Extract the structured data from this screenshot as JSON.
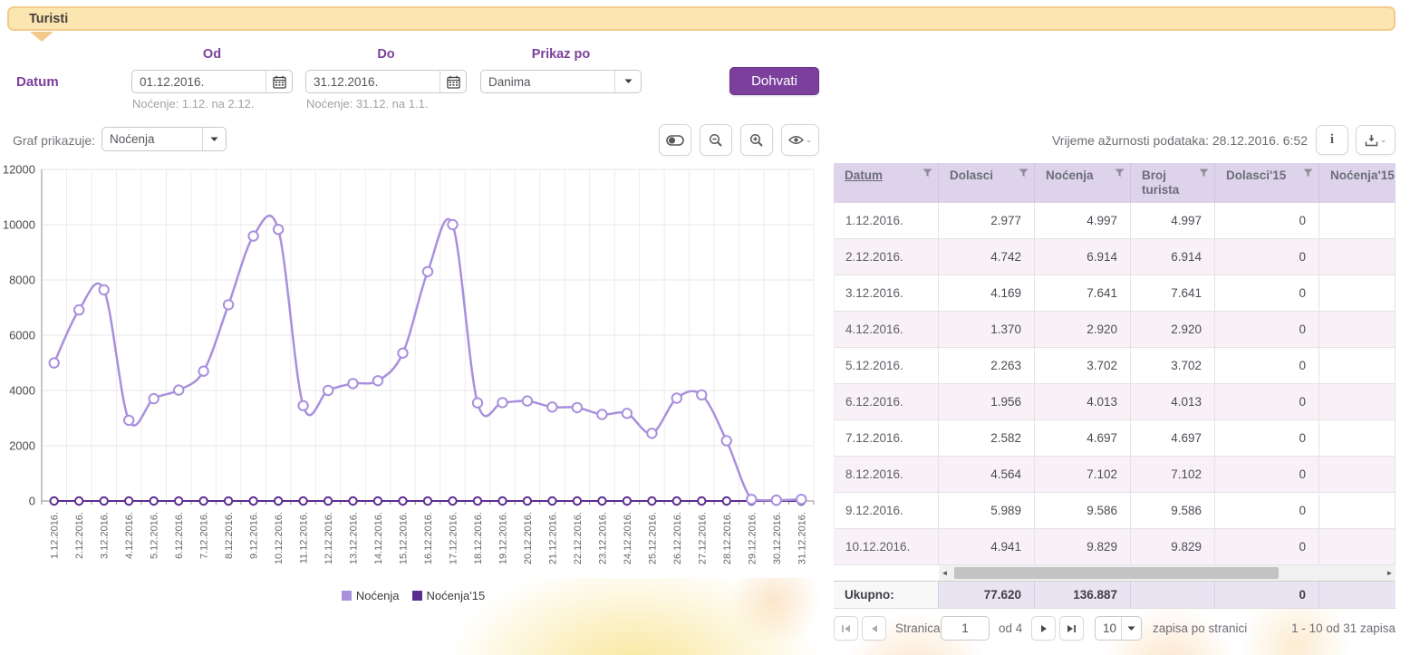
{
  "colors": {
    "accent": "#7c3f9c",
    "tab_bg": "#fbe6b1",
    "tab_border": "#f2cb8c",
    "table_header_bg": "#ddd4eb",
    "row_alt_bg": "#f8f1f8",
    "series_light": "#a990dc",
    "series_dark": "#5c2d91"
  },
  "header": {
    "tab_label": "Turisti"
  },
  "filters": {
    "od_label": "Od",
    "do_label": "Do",
    "prikaz_label": "Prikaz po",
    "datum_label": "Datum",
    "od_value": "01.12.2016.",
    "do_value": "31.12.2016.",
    "od_note": "Noćenje: 1.12. na 2.12.",
    "do_note": "Noćenje: 31.12. na 1.1.",
    "prikaz_value": "Danima",
    "dohvati_label": "Dohvati"
  },
  "chart_controls": {
    "graf_label": "Graf prikazuje:",
    "graf_value": "Noćenja"
  },
  "meta": {
    "updated_text": "Vrijeme ažurnosti podataka: 28.12.2016. 6:52"
  },
  "chart_data": {
    "type": "line",
    "categories": [
      "1.12.2016.",
      "2.12.2016.",
      "3.12.2016.",
      "4.12.2016.",
      "5.12.2016.",
      "6.12.2016.",
      "7.12.2016.",
      "8.12.2016.",
      "9.12.2016.",
      "10.12.2016.",
      "11.12.2016.",
      "12.12.2016.",
      "13.12.2016.",
      "14.12.2016.",
      "15.12.2016.",
      "16.12.2016.",
      "17.12.2016.",
      "18.12.2016.",
      "19.12.2016.",
      "20.12.2016.",
      "21.12.2016.",
      "22.12.2016.",
      "23.12.2016.",
      "24.12.2016.",
      "25.12.2016.",
      "26.12.2016.",
      "27.12.2016.",
      "28.12.2016.",
      "29.12.2016.",
      "30.12.2016.",
      "31.12.2016."
    ],
    "series": [
      {
        "name": "Noćenja",
        "color": "#a990dc",
        "values": [
          4997,
          6914,
          7641,
          2920,
          3702,
          4013,
          4697,
          7102,
          9586,
          9829,
          3450,
          4000,
          4250,
          4350,
          5350,
          8300,
          10000,
          3550,
          3560,
          3620,
          3400,
          3380,
          3130,
          3170,
          2450,
          3720,
          3840,
          2180,
          60,
          30,
          60
        ]
      },
      {
        "name": "Noćenja'15",
        "color": "#5c2d91",
        "values": [
          0,
          0,
          0,
          0,
          0,
          0,
          0,
          0,
          0,
          0,
          0,
          0,
          0,
          0,
          0,
          0,
          0,
          0,
          0,
          0,
          0,
          0,
          0,
          0,
          0,
          0,
          0,
          0,
          0,
          0,
          0
        ]
      }
    ],
    "ylim": [
      0,
      12000
    ],
    "ytick": 2000,
    "grid": true,
    "legend_position": "bottom",
    "title": "",
    "xlabel": "",
    "ylabel": ""
  },
  "table": {
    "columns": [
      {
        "label": "Datum",
        "sorted": true,
        "filter": true
      },
      {
        "label": "Dolasci",
        "sorted": false,
        "filter": true
      },
      {
        "label": "Noćenja",
        "sorted": false,
        "filter": true
      },
      {
        "label": "Broj turista",
        "sorted": false,
        "filter": true
      },
      {
        "label": "Dolasci'15",
        "sorted": false,
        "filter": true
      },
      {
        "label": "Noćenja'15",
        "sorted": false,
        "filter": false
      }
    ],
    "rows": [
      [
        "1.12.2016.",
        "2.977",
        "4.997",
        "4.997",
        "0",
        ""
      ],
      [
        "2.12.2016.",
        "4.742",
        "6.914",
        "6.914",
        "0",
        ""
      ],
      [
        "3.12.2016.",
        "4.169",
        "7.641",
        "7.641",
        "0",
        ""
      ],
      [
        "4.12.2016.",
        "1.370",
        "2.920",
        "2.920",
        "0",
        ""
      ],
      [
        "5.12.2016.",
        "2.263",
        "3.702",
        "3.702",
        "0",
        ""
      ],
      [
        "6.12.2016.",
        "1.956",
        "4.013",
        "4.013",
        "0",
        ""
      ],
      [
        "7.12.2016.",
        "2.582",
        "4.697",
        "4.697",
        "0",
        ""
      ],
      [
        "8.12.2016.",
        "4.564",
        "7.102",
        "7.102",
        "0",
        ""
      ],
      [
        "9.12.2016.",
        "5.989",
        "9.586",
        "9.586",
        "0",
        ""
      ],
      [
        "10.12.2016.",
        "4.941",
        "9.829",
        "9.829",
        "0",
        ""
      ]
    ],
    "totals": {
      "label": "Ukupno:",
      "dolasci": "77.620",
      "nocenja": "136.887",
      "broj_turista": "",
      "dolasci15": "0",
      "nocenja15": ""
    }
  },
  "pagination": {
    "stranica_label": "Stranica",
    "page_value": "1",
    "of_label": "od 4",
    "page_size": "10",
    "per_page_label": "zapisa po stranici",
    "range_label": "1 - 10 od 31 zapisa"
  }
}
